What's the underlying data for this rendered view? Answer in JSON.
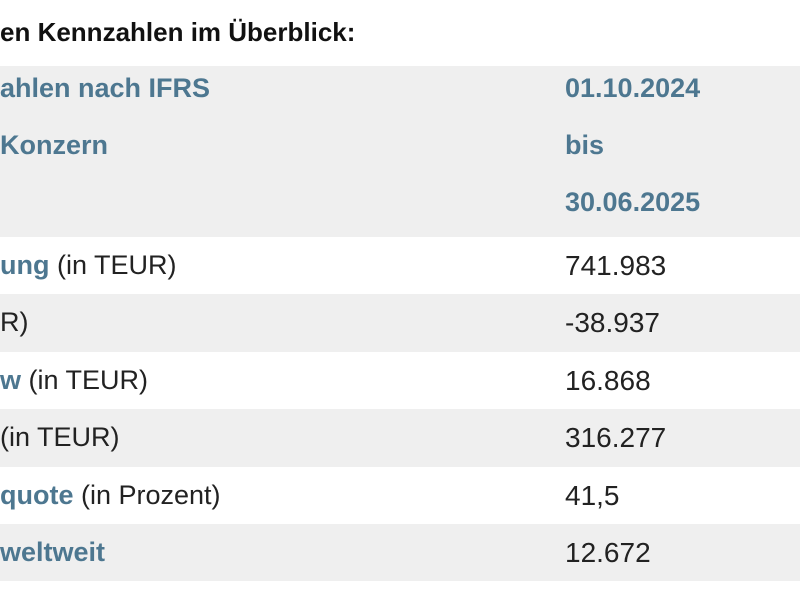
{
  "heading": "en Kennzahlen im Überblick:",
  "table": {
    "header": {
      "label_lines": [
        "ahlen nach IFRS",
        " Konzern",
        ""
      ],
      "period_lines": [
        "01.10.2024",
        "bis",
        "30.06.2025"
      ]
    },
    "rows": [
      {
        "label_accent": "ung",
        "label_plain": " (in TEUR)",
        "value": "741.983"
      },
      {
        "label_accent": "",
        "label_plain": "R)",
        "value": "-38.937"
      },
      {
        "label_accent": "w",
        "label_plain": " (in TEUR)",
        "value": "16.868"
      },
      {
        "label_accent": "",
        "label_plain": " (in TEUR)",
        "value": "316.277"
      },
      {
        "label_accent": "quote",
        "label_plain": " (in Prozent)",
        "value": "41,5"
      },
      {
        "label_accent": " weltweit",
        "label_plain": "",
        "value": "12.672"
      }
    ]
  },
  "colors": {
    "accent": "#4d7790",
    "row_shade": "#efefef",
    "text": "#222222"
  }
}
